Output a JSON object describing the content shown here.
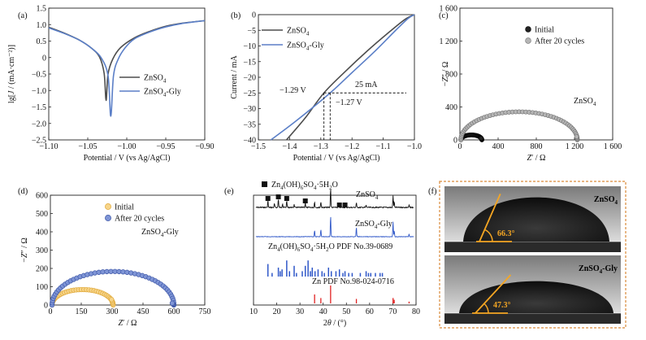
{
  "panels": {
    "a": {
      "letter": "(a)"
    },
    "b": {
      "letter": "(b)"
    },
    "c": {
      "letter": "(c)"
    },
    "d": {
      "letter": "(d)"
    },
    "e": {
      "letter": "(e)"
    },
    "f": {
      "letter": "(f)"
    }
  },
  "colors": {
    "znso4_line": "#4d4d4d",
    "znso4_gly_line": "#5b7fc7",
    "initial_c": "#111111",
    "after_c": "#9a9a9a",
    "initial_d": "#f2c060",
    "after_d": "#5a73c2",
    "xrd_black": "#111111",
    "xrd_blue": "#2f57c8",
    "xrd_red": "#e02020",
    "photo_frame": "#d98a3a",
    "angle_line": "#f5a623"
  },
  "chart_data": [
    {
      "id": "a",
      "type": "line",
      "xlabel": "Potential / V (vs Ag/AgCl)",
      "ylabel": "lg[J / (mA·cm⁻²)]",
      "xlim": [
        -1.1,
        -0.9
      ],
      "ylim": [
        -2.5,
        1.5
      ],
      "xticks": [
        -1.1,
        -1.05,
        -1.0,
        -0.95,
        -0.9
      ],
      "xtick_labels": [
        "−1.10",
        "−1.05",
        "−1.00",
        "−0.95",
        "−0.90"
      ],
      "yticks": [
        -2.5,
        -2.0,
        -1.5,
        -1.0,
        -0.5,
        0,
        0.5,
        1.0,
        1.5
      ],
      "ytick_labels": [
        "−2.5",
        "−2.0",
        "−1.5",
        "−1.0",
        "−0.5",
        "0",
        "0.5",
        "1.0",
        "1.5"
      ],
      "legend": [
        "ZnSO4",
        "ZnSO4-Gly"
      ],
      "series": [
        {
          "name": "ZnSO4",
          "x": [
            -1.1,
            -1.08,
            -1.06,
            -1.045,
            -1.035,
            -1.029,
            -1.0265,
            -1.024,
            -1.018,
            -1.008,
            -0.99,
            -0.97,
            -0.95,
            -0.93,
            -0.9
          ],
          "y": [
            0.92,
            0.74,
            0.52,
            0.28,
            0.02,
            -0.48,
            -1.3,
            -0.5,
            -0.05,
            0.3,
            0.6,
            0.8,
            0.95,
            1.04,
            1.12
          ]
        },
        {
          "name": "ZnSO4-Gly",
          "x": [
            -1.1,
            -1.08,
            -1.06,
            -1.045,
            -1.033,
            -1.024,
            -1.0205,
            -1.017,
            -1.011,
            -1.002,
            -0.99,
            -0.97,
            -0.95,
            -0.93,
            -0.9
          ],
          "y": [
            0.9,
            0.73,
            0.52,
            0.28,
            0.0,
            -0.55,
            -1.78,
            -0.55,
            -0.05,
            0.3,
            0.57,
            0.78,
            0.93,
            1.03,
            1.12
          ]
        }
      ]
    },
    {
      "id": "b",
      "type": "line",
      "xlabel": "Potential / V (vs Ag/AgCl)",
      "ylabel": "Current / mA",
      "xlim": [
        -1.5,
        -1.0
      ],
      "ylim": [
        -40,
        0
      ],
      "xticks": [
        -1.5,
        -1.4,
        -1.3,
        -1.2,
        -1.1,
        -1.0
      ],
      "xtick_labels": [
        "−1.5",
        "−1.4",
        "−1.3",
        "−1.2",
        "−1.1",
        "−1.0"
      ],
      "yticks": [
        -40,
        -35,
        -30,
        -25,
        -20,
        -15,
        -10,
        -5,
        0
      ],
      "ytick_labels": [
        "−40",
        "−35",
        "−30",
        "−25",
        "−20",
        "−15",
        "−10",
        "−5",
        "0"
      ],
      "legend": [
        "ZnSO4",
        "ZnSO4-Gly"
      ],
      "annotations": {
        "onset_znso4": "−1.29 V",
        "onset_gly": "−1.27 V",
        "current": "25 mA"
      },
      "reference": {
        "current": -25,
        "potential_znso4": -1.29,
        "potential_gly": -1.27
      },
      "series": [
        {
          "name": "ZnSO4",
          "x": [
            -1.41,
            -1.35,
            -1.29,
            -1.22,
            -1.15,
            -1.08,
            -1.03,
            -1.0
          ],
          "y": [
            -40,
            -33,
            -25,
            -18,
            -11.5,
            -5.5,
            -1.5,
            0
          ]
        },
        {
          "name": "ZnSO4-Gly",
          "x": [
            -1.46,
            -1.38,
            -1.27,
            -1.2,
            -1.13,
            -1.06,
            -1.02,
            -1.0
          ],
          "y": [
            -40,
            -34,
            -25,
            -18.5,
            -12,
            -5,
            -1.2,
            0
          ]
        }
      ]
    },
    {
      "id": "c",
      "type": "scatter",
      "xlabel": "Z′ / Ω",
      "ylabel": "−Z″ / Ω",
      "xlim": [
        0,
        1600
      ],
      "ylim": [
        0,
        1600
      ],
      "xticks": [
        0,
        400,
        800,
        1200,
        1600
      ],
      "xtick_labels": [
        "0",
        "400",
        "800",
        "1 200",
        "1 600"
      ],
      "yticks": [
        0,
        400,
        800,
        1200,
        1600
      ],
      "ytick_labels": [
        "0",
        "400",
        "800",
        "1 200",
        "1 600"
      ],
      "legend": [
        "Initial",
        "After 20 cycles"
      ],
      "annotation": "ZnSO4",
      "series": [
        {
          "name": "Initial",
          "arc": {
            "start": 10,
            "end": 230,
            "height": 0.55,
            "tail": 20
          },
          "points": 40
        },
        {
          "name": "After 20 cycles",
          "arc": {
            "start": 10,
            "end": 1230,
            "height": 0.56,
            "tail": 40
          },
          "points": 55
        }
      ]
    },
    {
      "id": "d",
      "type": "scatter",
      "xlabel": "Z′ / Ω",
      "ylabel": "−Z″ / Ω",
      "xlim": [
        0,
        750
      ],
      "ylim": [
        0,
        600
      ],
      "xticks": [
        0,
        150,
        300,
        450,
        600,
        750
      ],
      "xtick_labels": [
        "0",
        "150",
        "300",
        "450",
        "600",
        "750"
      ],
      "yticks": [
        0,
        100,
        200,
        300,
        400,
        500,
        600
      ],
      "ytick_labels": [
        "0",
        "100",
        "200",
        "300",
        "400",
        "500",
        "600"
      ],
      "legend": [
        "Initial",
        "After 20 cycles"
      ],
      "annotation": "ZnSO4-Gly",
      "series": [
        {
          "name": "Initial",
          "arc": {
            "start": 8,
            "end": 305,
            "height": 0.57,
            "tail": 30
          },
          "points": 38
        },
        {
          "name": "After 20 cycles",
          "arc": {
            "start": 8,
            "end": 600,
            "height": 0.62,
            "tail": 10
          },
          "points": 48
        }
      ]
    },
    {
      "id": "e",
      "type": "bar",
      "xlabel": "2θ / (°)",
      "xlim": [
        10,
        80
      ],
      "xticks": [
        10,
        20,
        30,
        40,
        50,
        60,
        70,
        80
      ],
      "xtick_labels": [
        "10",
        "20",
        "30",
        "40",
        "50",
        "60",
        "70",
        "80"
      ],
      "legend_marker_label": "Zn4(OH)6SO4·5H2O",
      "trace_labels": [
        "ZnSO4",
        "ZnSO4-Gly",
        "Zn4(OH)6SO4·5H2O PDF No.39-0689",
        "Zn PDF No.98-024-0716"
      ],
      "marker_positions": [
        16.2,
        20.7,
        24.3,
        32.3,
        47.0,
        49.4
      ],
      "peaks": {
        "ZnSO4": [
          [
            16.2,
            0.35
          ],
          [
            19.0,
            0.2
          ],
          [
            20.7,
            0.45
          ],
          [
            22.5,
            0.2
          ],
          [
            24.3,
            0.35
          ],
          [
            27.5,
            0.15
          ],
          [
            32.3,
            0.25
          ],
          [
            36.3,
            0.3
          ],
          [
            39.0,
            0.3
          ],
          [
            43.2,
            1.0
          ],
          [
            46.5,
            0.15
          ],
          [
            54.3,
            0.25
          ],
          [
            58.5,
            0.12
          ],
          [
            70.1,
            0.6
          ],
          [
            70.6,
            0.3
          ],
          [
            77.0,
            0.12
          ]
        ],
        "ZnSO4-Gly": [
          [
            36.3,
            0.3
          ],
          [
            39.0,
            0.35
          ],
          [
            43.2,
            1.0
          ],
          [
            54.3,
            0.45
          ],
          [
            70.1,
            0.7
          ],
          [
            70.6,
            0.3
          ],
          [
            77.0,
            0.12
          ]
        ],
        "PDF39": [
          [
            16.2,
            0.7
          ],
          [
            18.0,
            0.2
          ],
          [
            20.7,
            0.5
          ],
          [
            21.5,
            0.3
          ],
          [
            22.3,
            0.4
          ],
          [
            24.3,
            0.9
          ],
          [
            25.5,
            0.3
          ],
          [
            27.5,
            0.6
          ],
          [
            28.5,
            0.2
          ],
          [
            31.0,
            0.3
          ],
          [
            32.3,
            0.6
          ],
          [
            33.5,
            0.9
          ],
          [
            34.5,
            0.3
          ],
          [
            35.3,
            0.5
          ],
          [
            36.5,
            0.3
          ],
          [
            37.8,
            0.4
          ],
          [
            39.5,
            0.3
          ],
          [
            40.5,
            0.2
          ],
          [
            42.3,
            0.5
          ],
          [
            43.5,
            0.3
          ],
          [
            45.5,
            0.3
          ],
          [
            47.0,
            0.4
          ],
          [
            48.5,
            0.2
          ],
          [
            49.4,
            0.3
          ],
          [
            51.0,
            0.2
          ],
          [
            52.5,
            0.2
          ],
          [
            56.0,
            0.2
          ],
          [
            58.5,
            0.3
          ],
          [
            59.5,
            0.2
          ],
          [
            60.5,
            0.2
          ],
          [
            62.5,
            0.2
          ],
          [
            64.5,
            0.2
          ],
          [
            65.5,
            0.2
          ]
        ],
        "ZnPDF": [
          [
            36.3,
            0.5
          ],
          [
            39.0,
            0.3
          ],
          [
            43.2,
            1.0
          ],
          [
            54.3,
            0.25
          ],
          [
            70.1,
            0.3
          ],
          [
            70.6,
            0.2
          ],
          [
            77.0,
            0.1
          ]
        ]
      }
    },
    {
      "id": "f",
      "type": "photo",
      "images": [
        {
          "label": "ZnSO4",
          "angle": "66.3°",
          "angle_value": 66.3
        },
        {
          "label": "ZnSO4-Gly",
          "angle": "47.3°",
          "angle_value": 47.3
        }
      ]
    }
  ]
}
